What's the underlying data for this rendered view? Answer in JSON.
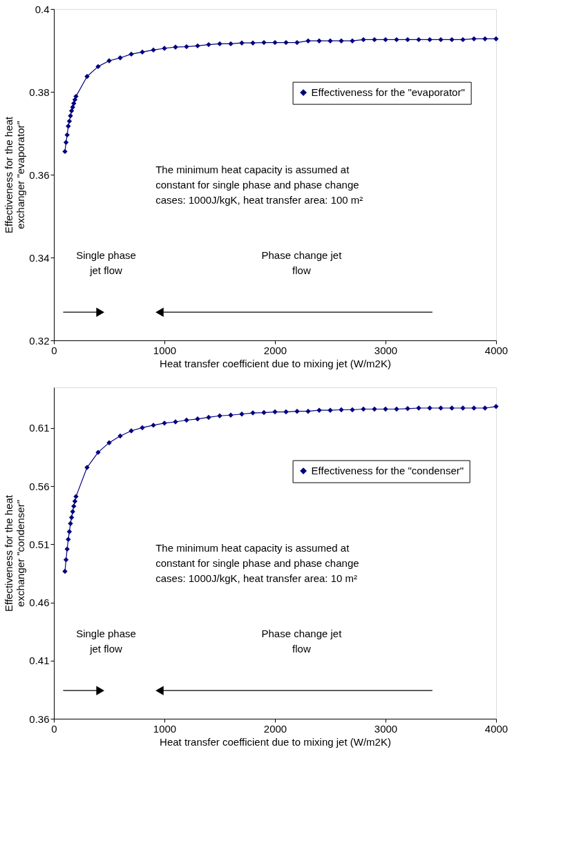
{
  "chart_data": [
    {
      "type": "line",
      "xlabel": "Heat transfer coefficient due to mixing jet (W/m2K)",
      "ylabel": "Effectiveness for the heat exchanger \"evaporator\"",
      "x": [
        100,
        110,
        120,
        130,
        140,
        150,
        160,
        170,
        180,
        190,
        200,
        300,
        400,
        500,
        600,
        700,
        800,
        900,
        1000,
        1100,
        1200,
        1300,
        1400,
        1500,
        1600,
        1700,
        1800,
        1900,
        2000,
        2100,
        2200,
        2300,
        2400,
        2500,
        2600,
        2700,
        2800,
        2900,
        3000,
        3100,
        3200,
        3300,
        3400,
        3500,
        3600,
        3700,
        3800,
        3900,
        4000
      ],
      "series": [
        {
          "name": "Effectiveness for the \"evaporator\"",
          "color": "#000080",
          "values": [
            0.3656,
            0.3678,
            0.3696,
            0.3717,
            0.3729,
            0.3742,
            0.3754,
            0.3763,
            0.3772,
            0.3781,
            0.3789,
            0.3837,
            0.3861,
            0.3875,
            0.3882,
            0.3891,
            0.3896,
            0.3901,
            0.3905,
            0.3908,
            0.3909,
            0.3911,
            0.3914,
            0.3916,
            0.3916,
            0.3918,
            0.3918,
            0.3919,
            0.3919,
            0.3919,
            0.3919,
            0.3923,
            0.3923,
            0.3923,
            0.3923,
            0.3923,
            0.3926,
            0.3926,
            0.3926,
            0.3926,
            0.3926,
            0.3926,
            0.3926,
            0.3926,
            0.3926,
            0.3926,
            0.3928,
            0.3928,
            0.3928
          ]
        }
      ],
      "xlim": [
        0,
        4000
      ],
      "xticks": [
        0,
        1000,
        2000,
        3000,
        4000
      ],
      "ylim": [
        0.32,
        0.4
      ],
      "yticks": [
        0.32,
        0.34,
        0.36,
        0.38,
        {
          "value": 0.4,
          "label": "0.4"
        }
      ],
      "marker": "diamond",
      "line_style": "solid",
      "grid": false,
      "legend": "right",
      "annotations": [
        "The minimum heat capacity is assumed at constant for single phase and phase change cases: 1000J/kgK, heat transfer area: 100 m²",
        "Single phase jet flow",
        "Phase change jet flow"
      ]
    },
    {
      "type": "line",
      "xlabel": "Heat transfer coefficient due to mixing jet (W/m2K)",
      "ylabel": "Effectiveness for the heat exchanger \"condenser\"",
      "x": [
        100,
        110,
        120,
        130,
        140,
        150,
        160,
        170,
        180,
        190,
        200,
        300,
        400,
        500,
        600,
        700,
        800,
        900,
        1000,
        1100,
        1200,
        1300,
        1400,
        1500,
        1600,
        1700,
        1800,
        1900,
        2000,
        2100,
        2200,
        2300,
        2400,
        2500,
        2600,
        2700,
        2800,
        2900,
        3000,
        3100,
        3200,
        3300,
        3400,
        3500,
        3600,
        3700,
        3800,
        3900,
        4000
      ],
      "series": [
        {
          "name": "Effectiveness for the \"condenser\"",
          "color": "#000080",
          "values": [
            0.4868,
            0.4967,
            0.5059,
            0.5142,
            0.5209,
            0.5279,
            0.5331,
            0.5381,
            0.5428,
            0.547,
            0.5511,
            0.5761,
            0.5891,
            0.5974,
            0.6031,
            0.6076,
            0.6103,
            0.6124,
            0.6142,
            0.6153,
            0.6168,
            0.6178,
            0.6192,
            0.6205,
            0.6211,
            0.622,
            0.623,
            0.6233,
            0.6239,
            0.6239,
            0.6244,
            0.6244,
            0.6253,
            0.6253,
            0.6257,
            0.6257,
            0.6263,
            0.6263,
            0.6263,
            0.6263,
            0.6267,
            0.6272,
            0.6272,
            0.6272,
            0.6272,
            0.6272,
            0.6272,
            0.6272,
            0.6285
          ]
        }
      ],
      "xlim": [
        0,
        4000
      ],
      "xticks": [
        0,
        1000,
        2000,
        3000,
        4000
      ],
      "ylim": [
        0.36,
        0.645
      ],
      "yticks": [
        0.36,
        0.41,
        0.46,
        0.51,
        0.56,
        0.61
      ],
      "marker": "diamond",
      "line_style": "solid",
      "grid": false,
      "legend": "right",
      "annotations": [
        "The minimum heat capacity is assumed at constant for single phase and phase change cases: 1000J/kgK, heat transfer area: 10 m²",
        "Single phase jet flow",
        "Phase change jet flow"
      ]
    }
  ]
}
